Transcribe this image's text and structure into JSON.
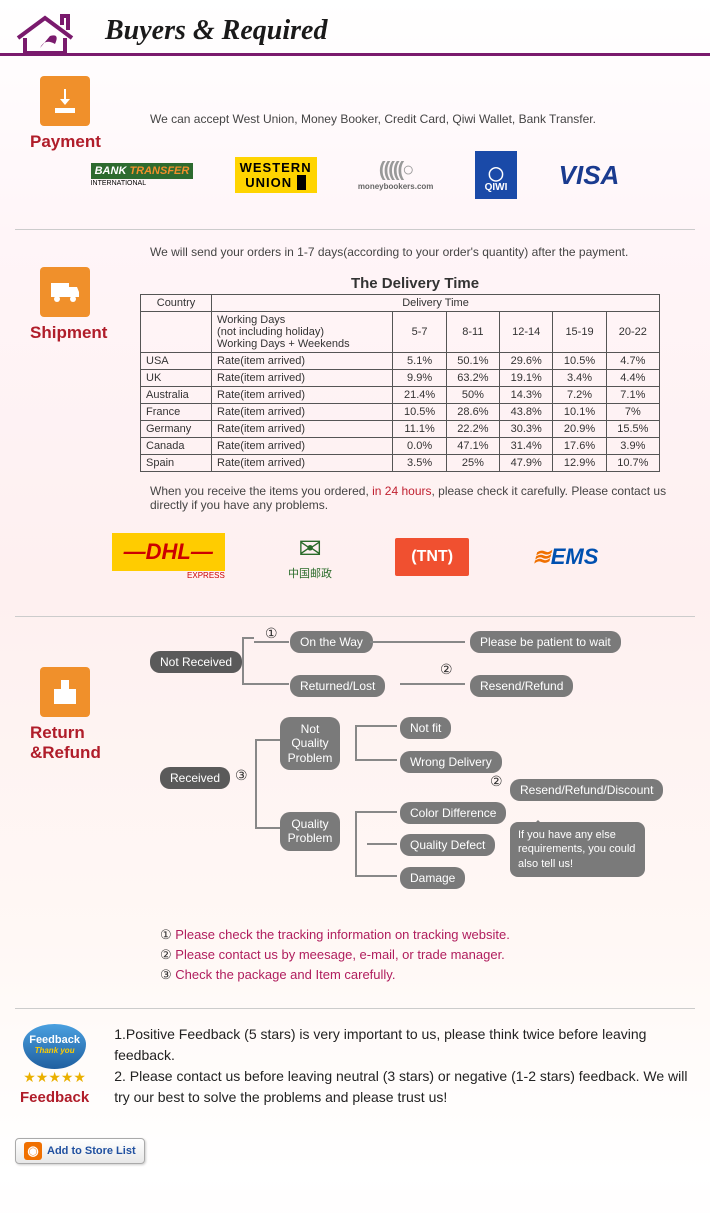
{
  "header": {
    "title": "Buyers & Required"
  },
  "payment": {
    "label": "Payment",
    "text": "We can accept West Union, Money Booker, Credit Card, Qiwi Wallet, Bank Transfer.",
    "logos": {
      "bank_transfer": "BANK TRANSFER",
      "bank_transfer_sub": "INTERNATIONAL",
      "western_union": "WESTERN UNION",
      "moneybookers": "(((((○",
      "moneybookers_sub": "moneybookers.com",
      "qiwi": "QIWI",
      "visa": "VISA"
    }
  },
  "shipment": {
    "label": "Shipment",
    "intro": "We will send your orders in 1-7 days(according to your order's quantity) after the payment.",
    "table_title": "The Delivery Time",
    "headers": {
      "country": "Country",
      "delivery": "Delivery Time"
    },
    "subhead": {
      "blank": "",
      "working": "Working Days\n(not including holiday)\nWorking Days + Weekends",
      "c1": "5-7",
      "c2": "8-11",
      "c3": "12-14",
      "c4": "15-19",
      "c5": "20-22"
    },
    "rate_label": "Rate(item arrived)",
    "rows": [
      {
        "country": "USA",
        "v": [
          "5.1%",
          "50.1%",
          "29.6%",
          "10.5%",
          "4.7%"
        ]
      },
      {
        "country": "UK",
        "v": [
          "9.9%",
          "63.2%",
          "19.1%",
          "3.4%",
          "4.4%"
        ]
      },
      {
        "country": "Australia",
        "v": [
          "21.4%",
          "50%",
          "14.3%",
          "7.2%",
          "7.1%"
        ]
      },
      {
        "country": "France",
        "v": [
          "10.5%",
          "28.6%",
          "43.8%",
          "10.1%",
          "7%"
        ]
      },
      {
        "country": "Germany",
        "v": [
          "11.1%",
          "22.2%",
          "30.3%",
          "20.9%",
          "15.5%"
        ]
      },
      {
        "country": "Canada",
        "v": [
          "0.0%",
          "47.1%",
          "31.4%",
          "17.6%",
          "3.9%"
        ]
      },
      {
        "country": "Spain",
        "v": [
          "3.5%",
          "25%",
          "47.9%",
          "12.9%",
          "10.7%"
        ]
      }
    ],
    "note_pre": "When you receive the items you ordered, ",
    "note_red": "in 24 hours",
    "note_post": ", please check it carefully. Please contact us directly if you have any problems.",
    "carriers": {
      "dhl": "DHL",
      "dhl_sub": "EXPRESS",
      "chinapost": "中国邮政",
      "tnt": "TNT",
      "ems": "EMS"
    }
  },
  "refund": {
    "label": "Return &Refund",
    "pills": {
      "not_received": "Not Received",
      "on_the_way": "On the Way",
      "please_wait": "Please be patient to wait",
      "returned_lost": "Returned/Lost",
      "resend_refund": "Resend/Refund",
      "received": "Received",
      "not_quality": "Not Quality Problem",
      "not_fit": "Not fit",
      "wrong_delivery": "Wrong Delivery",
      "quality_problem": "Quality Problem",
      "color_diff": "Color Difference",
      "quality_defect": "Quality Defect",
      "damage": "Damage",
      "resend_refund_discount": "Resend/Refund/Discount",
      "speech": "If you have any else requirements, you could also tell us!"
    },
    "circled": {
      "c1": "①",
      "c2": "②",
      "c3": "③"
    },
    "notes": {
      "n1": "Please check the tracking information on tracking website.",
      "n2": "Please contact us by meesage, e-mail, or trade manager.",
      "n3": "Check the package and Item carefully."
    }
  },
  "feedback": {
    "shield": "Feedback",
    "shield_sub": "Thank you",
    "label": "Feedback",
    "line1": "1.Positive Feedback (5 stars) is very important to us, please think twice before leaving feedback.",
    "line2": "2. Please contact us before leaving neutral (3 stars) or negative (1-2 stars) feedback. We will try our best to solve the problems and please trust us!"
  },
  "store_button": "Add to Store List",
  "colors": {
    "brand": "#7a1a6d",
    "section": "#b01d2a",
    "icon_bg": "#f0902b",
    "pill": "#7a7a7a",
    "note_pink": "#b01d5d"
  }
}
